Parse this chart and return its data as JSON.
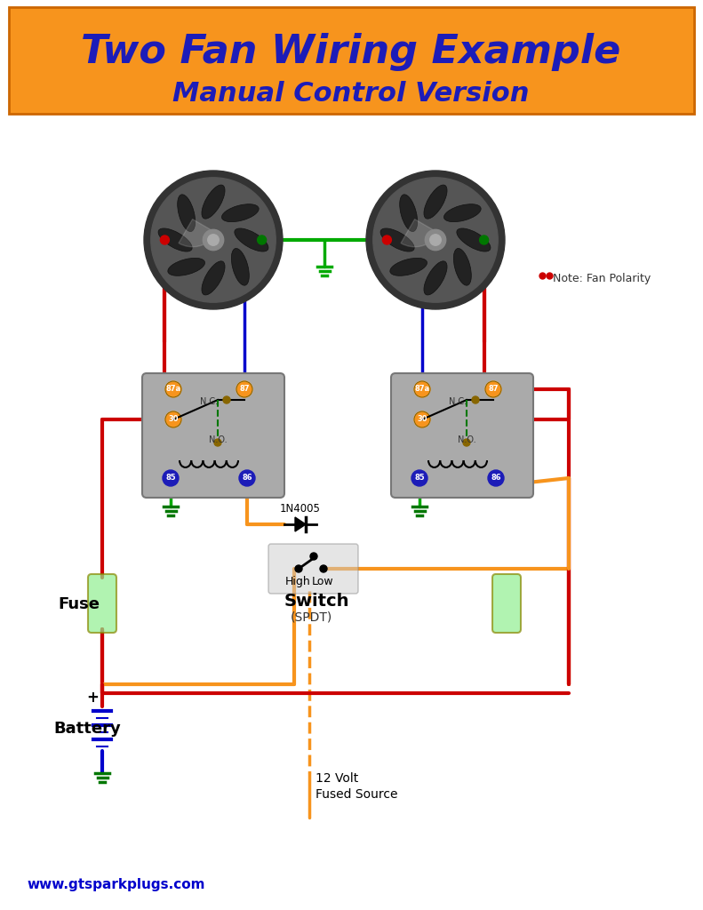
{
  "title_line1": "Two Fan Wiring Example",
  "title_line2": "Manual Control Version",
  "title_bg_color": "#F7941D",
  "title_text_color": "#1C1CB8",
  "bg_color": "#FFFFFF",
  "website": "www.gtsparkplugs.com",
  "website_color": "#0000CC",
  "wire_red": "#CC0000",
  "wire_blue": "#0000CC",
  "wire_green": "#00AA00",
  "wire_orange": "#F7941D",
  "wire_black": "#000000",
  "wire_dkgreen": "#007700",
  "relay_fill": "#AAAAAA",
  "relay_stroke": "#888888",
  "terminal_orange": "#F7941D",
  "terminal_blue": "#1C1CB8",
  "note_red": "#CC0000",
  "switch_fill": "#CCCCCC",
  "fuse_fill": "#90EE90",
  "battery_color": "#0000CC"
}
